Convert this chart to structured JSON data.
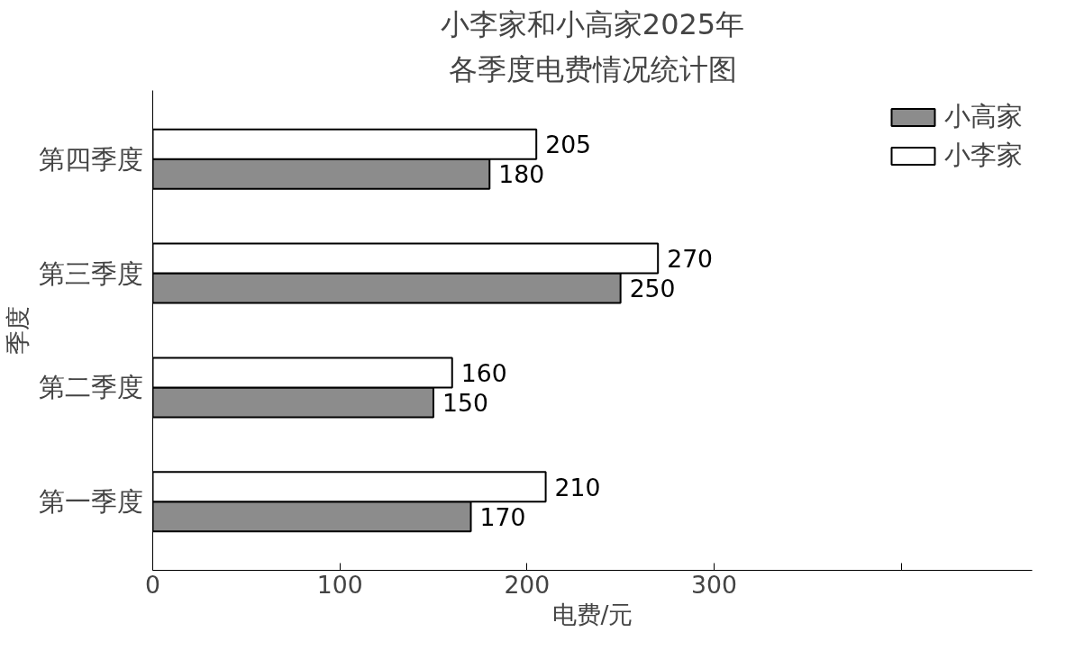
{
  "chart_data": {
    "type": "bar",
    "orientation": "horizontal",
    "title": "小李家和小高家2025年",
    "subtitle": "各季度电费情况统计图",
    "xlabel": "电费/元",
    "ylabel": "季度",
    "categories": [
      "第四季度",
      "第三季度",
      "第二季度",
      "第一季度"
    ],
    "series": [
      {
        "name": "小高家",
        "color": "#8c8c8c",
        "values": [
          180,
          250,
          150,
          170
        ]
      },
      {
        "name": "小李家",
        "color": "#ffffff",
        "values": [
          205,
          270,
          160,
          210
        ]
      }
    ],
    "xlim": [
      0,
      470
    ],
    "xticks": [
      0,
      100,
      200,
      300,
      {
        "value": 400,
        "label": null
      }
    ],
    "data_labels": true,
    "legend": "top right",
    "grid": false
  }
}
